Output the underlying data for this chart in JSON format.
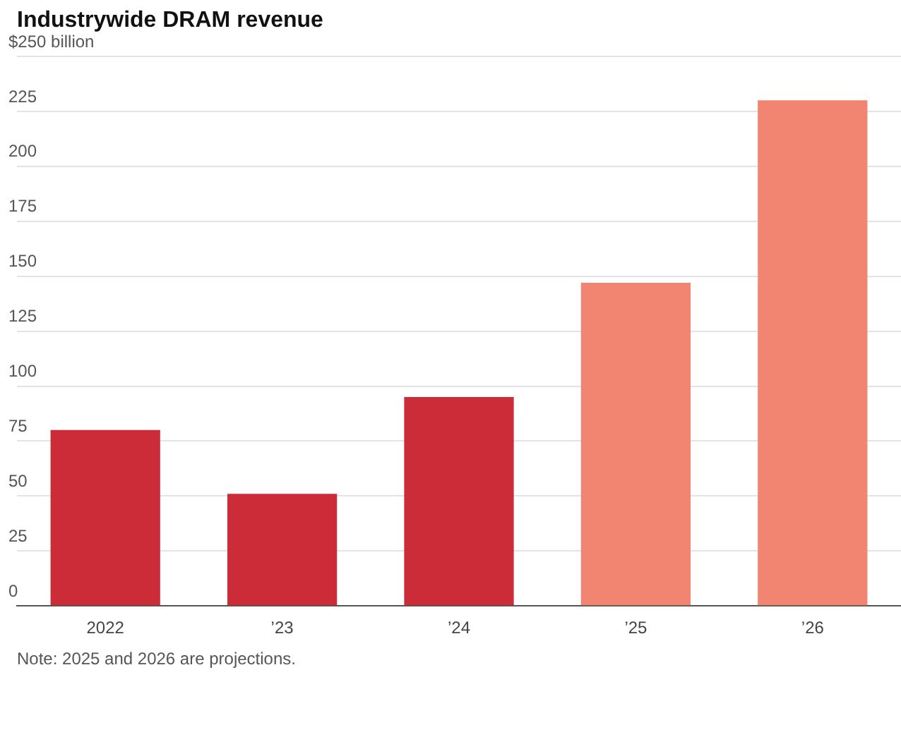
{
  "chart_data": {
    "type": "bar",
    "title": "Industrywide DRAM revenue",
    "categories": [
      "2022",
      "’23",
      "’24",
      "’25",
      "’26"
    ],
    "values": [
      80,
      51,
      95,
      147,
      230
    ],
    "colors": [
      "#cc2c38",
      "#cc2c38",
      "#cc2c38",
      "#f28472",
      "#f28472"
    ],
    "ylim": [
      0,
      250
    ],
    "yticks": [
      0,
      25,
      50,
      75,
      100,
      125,
      150,
      175,
      200,
      225,
      {
        "value": 250,
        "label": "$250 billion"
      }
    ],
    "grid": "y",
    "legend": false,
    "annotations": [
      "Note: 2025 and 2026 are projections."
    ]
  }
}
